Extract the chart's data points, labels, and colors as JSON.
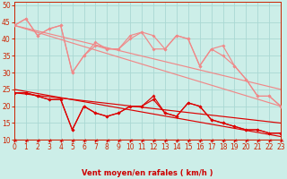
{
  "bg_color": "#cceee8",
  "grid_color": "#aad8d3",
  "xlabel": "Vent moyen/en rafales ( km/h )",
  "xlim": [
    0,
    23
  ],
  "ylim": [
    10,
    51
  ],
  "yticks": [
    10,
    15,
    20,
    25,
    30,
    35,
    40,
    45,
    50
  ],
  "xticks": [
    0,
    1,
    2,
    3,
    4,
    5,
    6,
    7,
    8,
    9,
    10,
    11,
    12,
    13,
    14,
    15,
    16,
    17,
    18,
    19,
    20,
    21,
    22,
    23
  ],
  "hours": [
    0,
    1,
    2,
    3,
    4,
    5,
    6,
    7,
    8,
    9,
    10,
    11,
    12,
    13,
    14,
    15,
    16,
    17,
    18,
    19,
    20,
    21,
    22,
    23
  ],
  "light1": [
    44,
    46,
    41,
    43,
    44,
    30,
    35,
    39,
    37,
    37,
    40,
    42,
    41,
    37,
    41,
    40,
    32,
    37,
    38,
    32,
    28,
    23,
    23,
    20
  ],
  "light2": [
    44,
    46,
    41,
    43,
    44,
    30,
    35,
    38,
    37,
    37,
    41,
    42,
    37,
    37,
    41,
    40,
    32,
    37,
    35,
    32,
    28,
    23,
    23,
    20
  ],
  "light_diag1": [
    44,
    20
  ],
  "light_diag2": [
    44,
    25
  ],
  "dark1": [
    24,
    24,
    23,
    22,
    22,
    13,
    20,
    18,
    17,
    18,
    20,
    20,
    23,
    18,
    17,
    21,
    20,
    16,
    15,
    14,
    13,
    13,
    12,
    12
  ],
  "dark2": [
    24,
    24,
    23,
    22,
    22,
    13,
    20,
    18,
    17,
    18,
    20,
    20,
    22,
    18,
    17,
    21,
    20,
    16,
    15,
    14,
    13,
    13,
    12,
    12
  ],
  "dark_diag1": [
    25,
    11
  ],
  "dark_diag2": [
    24,
    15
  ],
  "color_light": "#f08888",
  "color_dark": "#dd0000",
  "xlabel_color": "#cc0000",
  "tick_color": "#cc2200",
  "spine_color": "#cc2200"
}
